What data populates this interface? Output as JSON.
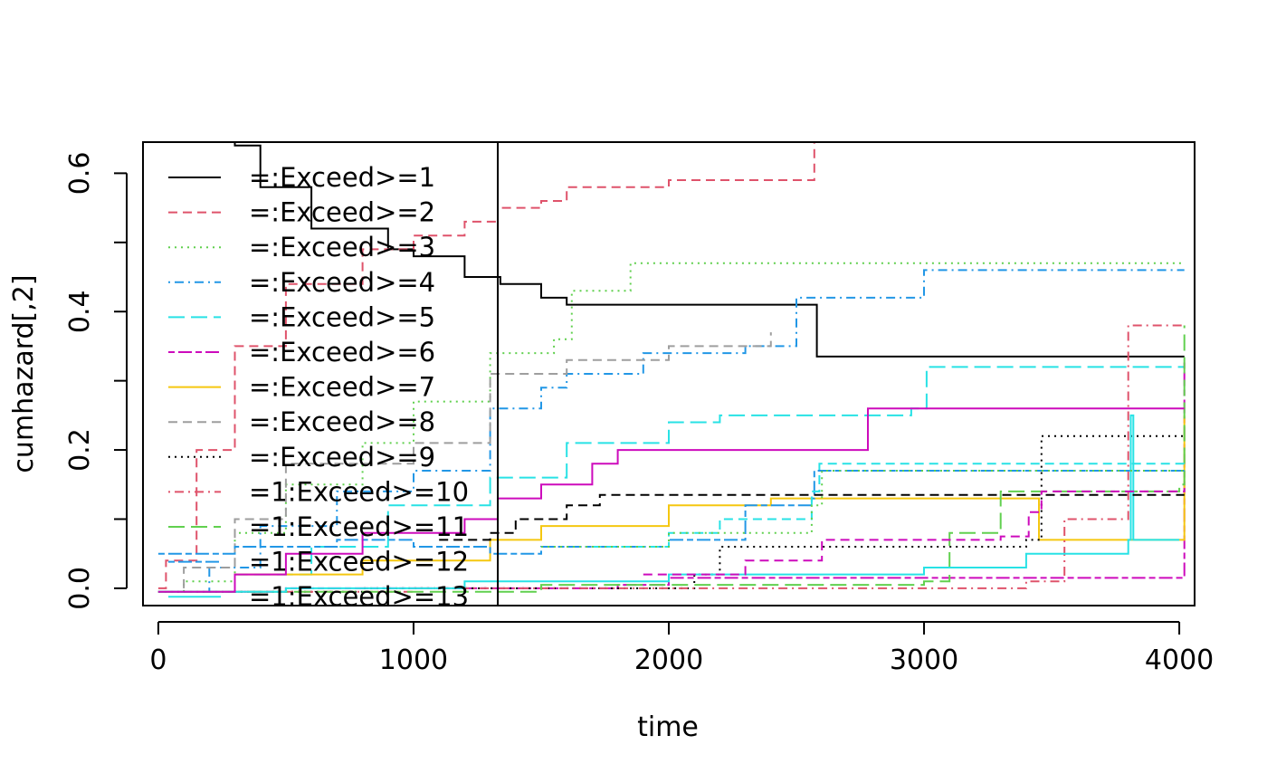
{
  "chart_data": {
    "type": "line",
    "title": "",
    "xlabel": "time",
    "ylabel": "cumhazard[,2]",
    "xlim": [
      -60,
      4060
    ],
    "ylim": [
      -0.025,
      0.645
    ],
    "x_ticks": [
      0,
      1000,
      2000,
      3000,
      4000
    ],
    "x_tick_labels": [
      "0",
      "1000",
      "2000",
      "3000",
      "4000"
    ],
    "y_ticks": [
      0.0,
      0.1,
      0.2,
      0.3,
      0.4,
      0.5,
      0.6
    ],
    "y_tick_labels": [
      "0.0",
      "",
      "0.2",
      "",
      "0.4",
      "",
      "0.6"
    ],
    "legend_position": "top-left",
    "vertical_line": {
      "x": 1330
    },
    "series": [
      {
        "name": "=:Exceed>=1",
        "color": "#000000",
        "dash": "solid",
        "points": [
          [
            0,
            0.66
          ],
          [
            300,
            0.64
          ],
          [
            400,
            0.58
          ],
          [
            600,
            0.52
          ],
          [
            900,
            0.49
          ],
          [
            1000,
            0.48
          ],
          [
            1200,
            0.45
          ],
          [
            1340,
            0.44
          ],
          [
            1500,
            0.42
          ],
          [
            1600,
            0.41
          ],
          [
            2560,
            0.41
          ],
          [
            2580,
            0.335
          ],
          [
            4020,
            0.335
          ]
        ]
      },
      {
        "name": "=:Exceed>=2",
        "color": "#DF536B",
        "dash": "dashed",
        "points": [
          [
            0,
            0
          ],
          [
            30,
            0.04
          ],
          [
            150,
            0.2
          ],
          [
            300,
            0.35
          ],
          [
            500,
            0.44
          ],
          [
            800,
            0.49
          ],
          [
            1000,
            0.51
          ],
          [
            1200,
            0.53
          ],
          [
            1330,
            0.55
          ],
          [
            1500,
            0.56
          ],
          [
            1600,
            0.58
          ],
          [
            2000,
            0.59
          ],
          [
            2540,
            0.59
          ],
          [
            2570,
            0.645
          ]
        ]
      },
      {
        "name": "=:Exceed>=3",
        "color": "#61D04F",
        "dash": "dotted",
        "points": [
          [
            0,
            -0.005
          ],
          [
            100,
            0.01
          ],
          [
            300,
            0.08
          ],
          [
            500,
            0.15
          ],
          [
            800,
            0.21
          ],
          [
            1000,
            0.27
          ],
          [
            1300,
            0.34
          ],
          [
            1550,
            0.36
          ],
          [
            1620,
            0.43
          ],
          [
            1850,
            0.47
          ],
          [
            4020,
            0.47
          ]
        ]
      },
      {
        "name": "=:Exceed>=4",
        "color": "#2297E6",
        "dash": "dotdash",
        "points": [
          [
            0,
            -0.005
          ],
          [
            200,
            0.03
          ],
          [
            400,
            0.09
          ],
          [
            700,
            0.14
          ],
          [
            1000,
            0.17
          ],
          [
            1300,
            0.26
          ],
          [
            1500,
            0.29
          ],
          [
            1600,
            0.31
          ],
          [
            1900,
            0.34
          ],
          [
            2300,
            0.35
          ],
          [
            2500,
            0.42
          ],
          [
            3000,
            0.46
          ],
          [
            4020,
            0.46
          ]
        ]
      },
      {
        "name": "=:Exceed>=5",
        "color": "#28E2E5",
        "dash": "longdash",
        "points": [
          [
            0,
            -0.005
          ],
          [
            300,
            0.02
          ],
          [
            600,
            0.06
          ],
          [
            900,
            0.12
          ],
          [
            1300,
            0.16
          ],
          [
            1600,
            0.21
          ],
          [
            2000,
            0.24
          ],
          [
            2200,
            0.25
          ],
          [
            2950,
            0.26
          ],
          [
            3010,
            0.32
          ],
          [
            4020,
            0.32
          ]
        ]
      },
      {
        "name": "=:Exceed>=6",
        "color": "#CD0BBC",
        "dash": "twodash",
        "points": [
          [
            0,
            -0.005
          ],
          [
            500,
            0.0
          ],
          [
            1800,
            0.005
          ],
          [
            2000,
            0.015
          ],
          [
            4000,
            0.015
          ],
          [
            4020,
            0.33
          ]
        ]
      },
      {
        "name": "=:Exceed>=7",
        "color": "#F5C710",
        "dash": "solid",
        "points": [
          [
            0,
            -0.005
          ],
          [
            300,
            0.02
          ],
          [
            800,
            0.04
          ],
          [
            1300,
            0.07
          ],
          [
            1500,
            0.09
          ],
          [
            2000,
            0.12
          ],
          [
            2400,
            0.13
          ],
          [
            3440,
            0.13
          ],
          [
            3450,
            0.07
          ],
          [
            3990,
            0.07
          ],
          [
            4020,
            0.25
          ]
        ]
      },
      {
        "name": "=:Exceed>=8",
        "color": "#9E9E9E",
        "dash": "dashed",
        "points": [
          [
            0,
            -0.005
          ],
          [
            100,
            0.03
          ],
          [
            300,
            0.1
          ],
          [
            500,
            0.18
          ],
          [
            1000,
            0.21
          ],
          [
            1300,
            0.31
          ],
          [
            1600,
            0.33
          ],
          [
            2000,
            0.35
          ],
          [
            2400,
            0.37
          ]
        ]
      },
      {
        "name": "=:Exceed>=9",
        "color": "#000000",
        "dash": "dotted",
        "points": [
          [
            0,
            -0.005
          ],
          [
            800,
            0.0
          ],
          [
            2100,
            0.02
          ],
          [
            2200,
            0.06
          ],
          [
            3400,
            0.07
          ],
          [
            3460,
            0.22
          ],
          [
            4020,
            0.22
          ]
        ]
      },
      {
        "name": "=1:Exceed>=10",
        "color": "#DF536B",
        "dash": "dotdash",
        "points": [
          [
            0,
            -0.005
          ],
          [
            1000,
            0.0
          ],
          [
            3400,
            0.01
          ],
          [
            3550,
            0.1
          ],
          [
            3800,
            0.38
          ],
          [
            4020,
            0.38
          ]
        ]
      },
      {
        "name": "=1:Exceed>=11",
        "color": "#61D04F",
        "dash": "longdash",
        "points": [
          [
            0,
            -0.005
          ],
          [
            1500,
            0.005
          ],
          [
            3000,
            0.01
          ],
          [
            3100,
            0.08
          ],
          [
            3300,
            0.14
          ],
          [
            4000,
            0.15
          ],
          [
            4020,
            0.38
          ]
        ]
      },
      {
        "name": "=1:Exceed>=12",
        "color": "#2297E6",
        "dash": "twodash",
        "points": [
          [
            0,
            0.05
          ],
          [
            150,
            0.05
          ],
          [
            300,
            0.06
          ],
          [
            700,
            0.07
          ],
          [
            1000,
            0.06
          ],
          [
            1300,
            0.05
          ],
          [
            1500,
            0.06
          ],
          [
            2000,
            0.07
          ],
          [
            2300,
            0.12
          ],
          [
            2560,
            0.13
          ],
          [
            2570,
            0.17
          ],
          [
            4020,
            0.17
          ]
        ]
      },
      {
        "name": "=1:Exceed>=13",
        "color": "#28E2E5",
        "dash": "solid",
        "points": [
          [
            0,
            -0.005
          ],
          [
            500,
            0.0
          ],
          [
            1200,
            0.01
          ],
          [
            2000,
            0.02
          ],
          [
            3000,
            0.03
          ],
          [
            3400,
            0.05
          ],
          [
            3800,
            0.07
          ],
          [
            3810,
            0.25
          ],
          [
            3820,
            0.07
          ],
          [
            4000,
            0.07
          ]
        ]
      },
      {
        "name": "",
        "color": "#CD0BBC",
        "dash": "solid",
        "points": [
          [
            0,
            -0.005
          ],
          [
            300,
            0.02
          ],
          [
            500,
            0.05
          ],
          [
            800,
            0.08
          ],
          [
            1000,
            0.08
          ],
          [
            1200,
            0.1
          ],
          [
            1330,
            0.13
          ],
          [
            1500,
            0.15
          ],
          [
            1700,
            0.18
          ],
          [
            1800,
            0.2
          ],
          [
            2760,
            0.2
          ],
          [
            2780,
            0.26
          ],
          [
            4020,
            0.26
          ]
        ]
      },
      {
        "name": "",
        "color": "#000000",
        "dash": "dashed",
        "points": [
          [
            1100,
            0.07
          ],
          [
            1300,
            0.08
          ],
          [
            1400,
            0.1
          ],
          [
            1600,
            0.12
          ],
          [
            1730,
            0.135
          ],
          [
            4020,
            0.135
          ]
        ]
      },
      {
        "name": "",
        "color": "#CD0BBC",
        "dash": "dashed",
        "points": [
          [
            1900,
            0.02
          ],
          [
            2300,
            0.04
          ],
          [
            2600,
            0.07
          ],
          [
            3000,
            0.07
          ],
          [
            3300,
            0.075
          ],
          [
            3400,
            0.075
          ],
          [
            3410,
            0.11
          ],
          [
            3460,
            0.14
          ],
          [
            4020,
            0.145
          ]
        ]
      },
      {
        "name": "",
        "color": "#28E2E5",
        "dash": "dashed",
        "points": [
          [
            1700,
            0.06
          ],
          [
            2000,
            0.08
          ],
          [
            2200,
            0.1
          ],
          [
            2560,
            0.14
          ],
          [
            2590,
            0.18
          ],
          [
            4020,
            0.18
          ]
        ]
      },
      {
        "name": "",
        "color": "#61D04F",
        "dash": "dotted",
        "points": [
          [
            1500,
            0.06
          ],
          [
            2000,
            0.08
          ],
          [
            2560,
            0.12
          ],
          [
            2600,
            0.17
          ],
          [
            4020,
            0.17
          ]
        ]
      }
    ]
  }
}
